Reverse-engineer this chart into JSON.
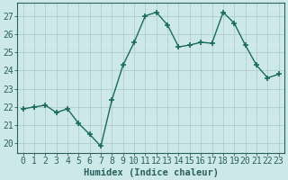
{
  "x": [
    0,
    1,
    2,
    3,
    4,
    5,
    6,
    7,
    8,
    9,
    10,
    11,
    12,
    13,
    14,
    15,
    16,
    17,
    18,
    19,
    20,
    21,
    22,
    23
  ],
  "y": [
    21.9,
    22.0,
    22.1,
    21.7,
    21.9,
    21.1,
    20.5,
    19.85,
    22.4,
    24.3,
    25.55,
    27.0,
    27.2,
    26.5,
    25.3,
    25.4,
    25.55,
    25.5,
    27.2,
    26.6,
    25.4,
    24.3,
    23.6,
    23.8
  ],
  "line_color": "#1a6b5a",
  "marker": "+",
  "marker_size": 4,
  "marker_lw": 1.2,
  "bg_color": "#cde8e8",
  "grid_major_color": "#b0cccc",
  "grid_minor_color": "#d8e8e8",
  "xlabel": "Humidex (Indice chaleur)",
  "ylim": [
    19.5,
    27.7
  ],
  "xlim": [
    -0.5,
    23.5
  ],
  "yticks": [
    20,
    21,
    22,
    23,
    24,
    25,
    26,
    27
  ],
  "xticks": [
    0,
    1,
    2,
    3,
    4,
    5,
    6,
    7,
    8,
    9,
    10,
    11,
    12,
    13,
    14,
    15,
    16,
    17,
    18,
    19,
    20,
    21,
    22,
    23
  ],
  "xlabel_fontsize": 7.5,
  "tick_fontsize": 7,
  "axis_color": "#2a6060",
  "spine_color": "#2a6060",
  "line_width": 1.0
}
